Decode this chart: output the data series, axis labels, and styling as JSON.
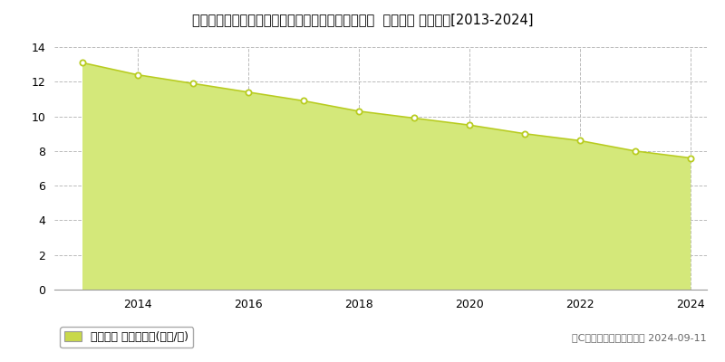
{
  "title": "岩手県岩手郡岩手町大字沼宮内第７地割２４番１外  地価公示 地価推移[2013-2024]",
  "years": [
    2013,
    2014,
    2015,
    2016,
    2017,
    2018,
    2019,
    2020,
    2021,
    2022,
    2023,
    2024
  ],
  "values": [
    13.1,
    12.4,
    11.9,
    11.4,
    10.9,
    10.3,
    9.9,
    9.5,
    9.0,
    8.6,
    8.0,
    7.6
  ],
  "ylim": [
    0,
    14
  ],
  "yticks": [
    0,
    2,
    4,
    6,
    8,
    10,
    12,
    14
  ],
  "xticks": [
    2014,
    2016,
    2018,
    2020,
    2022,
    2024
  ],
  "line_color": "#b8cc20",
  "fill_color": "#d4e87a",
  "fill_alpha": 1.0,
  "marker_facecolor": "white",
  "marker_edgecolor": "#b8cc20",
  "bg_color": "#ffffff",
  "grid_color": "#bbbbbb",
  "legend_label": "地価公示 平均坪単価(万円/坪)",
  "legend_marker_color": "#c8d84a",
  "copyright_text": "（C）土地価格ドットコム 2024-09-11",
  "title_fontsize": 10.5,
  "axis_fontsize": 9,
  "legend_fontsize": 9,
  "copyright_fontsize": 8
}
